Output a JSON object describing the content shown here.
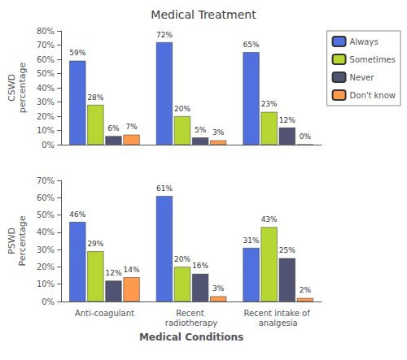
{
  "chart_data": [
    {
      "type": "bar",
      "title": "Medical Treatment",
      "ylabel": "CSWD\npercentage",
      "categories": [
        null,
        null,
        null
      ],
      "series": [
        {
          "name": "Always",
          "values": [
            59,
            72,
            65
          ],
          "value_labels": [
            "59%",
            "72%",
            "65%"
          ]
        },
        {
          "name": "Sometimes",
          "values": [
            28,
            20,
            23
          ],
          "value_labels": [
            "28%",
            "20%",
            "23%"
          ]
        },
        {
          "name": "Never",
          "values": [
            6,
            5,
            12
          ],
          "value_labels": [
            "6%",
            "5%",
            "12%"
          ]
        },
        {
          "name": "Don't know",
          "values": [
            7,
            3,
            0
          ],
          "value_labels": [
            "7%",
            "3%",
            "0%"
          ]
        }
      ],
      "ylim": [
        0,
        80
      ],
      "yticks": [
        {
          "value": 0,
          "label": "0%"
        },
        {
          "value": 10,
          "label": "10%"
        },
        {
          "value": 20,
          "label": "20%"
        },
        {
          "value": 30,
          "label": "30%"
        },
        {
          "value": 40,
          "label": "40%"
        },
        {
          "value": 50,
          "label": "50%"
        },
        {
          "value": 60,
          "label": "60%"
        },
        {
          "value": 70,
          "label": "70%"
        },
        {
          "value": 80,
          "label": "80%"
        }
      ],
      "grid": false,
      "legend": "right",
      "data_labels": true
    },
    {
      "type": "bar",
      "xlabel": "Medical Conditions",
      "ylabel": "PSWD\nPercentage",
      "categories": [
        "Anti-coagulant",
        "Recent radiotherapy",
        "Recent intake of analgesia"
      ],
      "series": [
        {
          "name": "Always",
          "values": [
            46,
            61,
            31
          ],
          "value_labels": [
            "46%",
            "61%",
            "31%"
          ]
        },
        {
          "name": "Sometimes",
          "values": [
            29,
            20,
            43
          ],
          "value_labels": [
            "29%",
            "20%",
            "43%"
          ]
        },
        {
          "name": "Never",
          "values": [
            12,
            16,
            25
          ],
          "value_labels": [
            "12%",
            "16%",
            "25%"
          ]
        },
        {
          "name": "Don't know",
          "values": [
            14,
            3,
            2
          ],
          "value_labels": [
            "14%",
            "3%",
            "2%"
          ]
        }
      ],
      "ylim": [
        0,
        70
      ],
      "yticks": [
        {
          "value": 0,
          "label": "0%"
        },
        {
          "value": 10,
          "label": "10%"
        },
        {
          "value": 20,
          "label": "20%"
        },
        {
          "value": 30,
          "label": "30%"
        },
        {
          "value": 40,
          "label": "40%"
        },
        {
          "value": 50,
          "label": "50%"
        },
        {
          "value": 60,
          "label": "60%"
        },
        {
          "value": 70,
          "label": "70%"
        }
      ],
      "grid": false,
      "data_labels": true
    }
  ]
}
